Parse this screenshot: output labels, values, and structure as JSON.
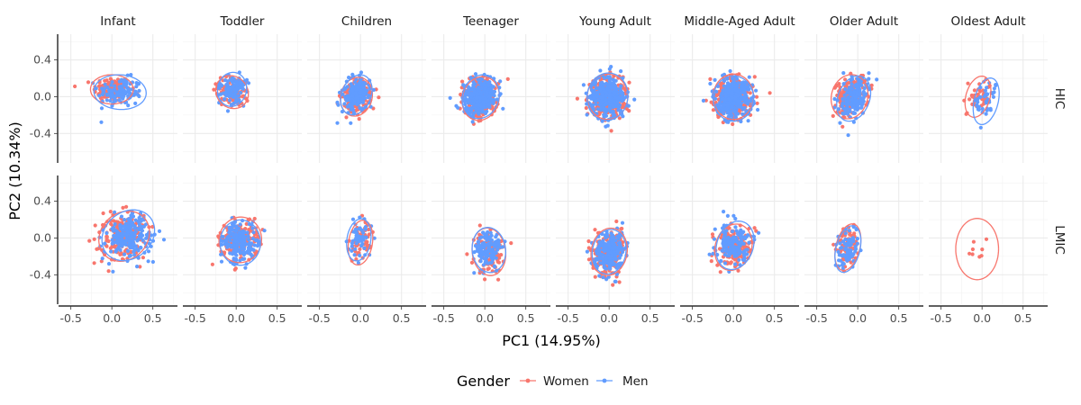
{
  "chart_data": {
    "type": "scatter",
    "title": "",
    "xlabel": "PC1 (14.95%)",
    "ylabel": "PC2 (10.34%)",
    "xlim": [
      -0.65,
      0.8
    ],
    "ylim": [
      -0.72,
      0.68
    ],
    "xticks": [
      -0.5,
      0.0,
      0.5
    ],
    "yticks": [
      -0.4,
      0.0,
      0.4
    ],
    "xtick_labels": [
      "-0.5",
      "0.0",
      "0.5"
    ],
    "ytick_labels": [
      "-0.4",
      "0.0",
      "0.4"
    ],
    "grid": true,
    "facet_columns": [
      "Infant",
      "Toddler",
      "Children",
      "Teenager",
      "Young Adult",
      "Middle-Aged Adult",
      "Older Adult",
      "Oldest Adult"
    ],
    "facet_rows": [
      "HIC",
      "LMIC"
    ],
    "legend": {
      "title": "Gender",
      "position": "bottom",
      "entries": [
        {
          "label": "Women",
          "color": "#F8766D"
        },
        {
          "label": "Men",
          "color": "#619CFF"
        }
      ]
    },
    "series_colors": {
      "Women": "#F8766D",
      "Men": "#619CFF"
    },
    "panels": [
      {
        "row": "HIC",
        "col": "Infant",
        "n": 120,
        "women": {
          "cx": 0.0,
          "cy": 0.08,
          "sx": 0.18,
          "sy": 0.11,
          "r": 0.0
        },
        "men": {
          "cx": 0.1,
          "cy": 0.05,
          "sx": 0.22,
          "sy": 0.13,
          "r": -0.05
        }
      },
      {
        "row": "HIC",
        "col": "Toddler",
        "n": 100,
        "women": {
          "cx": -0.05,
          "cy": 0.05,
          "sx": 0.14,
          "sy": 0.12,
          "r": -0.4
        },
        "men": {
          "cx": -0.05,
          "cy": 0.08,
          "sx": 0.12,
          "sy": 0.13,
          "r": -0.5
        }
      },
      {
        "row": "HIC",
        "col": "Children",
        "n": 170,
        "women": {
          "cx": -0.05,
          "cy": 0.0,
          "sx": 0.13,
          "sy": 0.15,
          "r": -0.5
        },
        "men": {
          "cx": -0.05,
          "cy": 0.02,
          "sx": 0.12,
          "sy": 0.16,
          "r": -0.55
        }
      },
      {
        "row": "HIC",
        "col": "Teenager",
        "n": 280,
        "women": {
          "cx": -0.05,
          "cy": -0.02,
          "sx": 0.15,
          "sy": 0.17,
          "r": -0.6
        },
        "men": {
          "cx": -0.05,
          "cy": 0.0,
          "sx": 0.15,
          "sy": 0.17,
          "r": -0.6
        }
      },
      {
        "row": "HIC",
        "col": "Young Adult",
        "n": 320,
        "women": {
          "cx": -0.02,
          "cy": 0.0,
          "sx": 0.17,
          "sy": 0.17,
          "r": -0.5
        },
        "men": {
          "cx": -0.02,
          "cy": 0.0,
          "sx": 0.17,
          "sy": 0.18,
          "r": -0.5
        }
      },
      {
        "row": "HIC",
        "col": "Middle-Aged Adult",
        "n": 340,
        "women": {
          "cx": 0.0,
          "cy": 0.0,
          "sx": 0.17,
          "sy": 0.17,
          "r": -0.45
        },
        "men": {
          "cx": 0.0,
          "cy": -0.02,
          "sx": 0.17,
          "sy": 0.17,
          "r": -0.45
        }
      },
      {
        "row": "HIC",
        "col": "Older Adult",
        "n": 170,
        "women": {
          "cx": -0.1,
          "cy": 0.0,
          "sx": 0.15,
          "sy": 0.17,
          "r": -0.5
        },
        "men": {
          "cx": -0.05,
          "cy": -0.02,
          "sx": 0.13,
          "sy": 0.18,
          "r": -0.5
        }
      },
      {
        "row": "HIC",
        "col": "Oldest Adult",
        "n": 40,
        "women": {
          "cx": -0.05,
          "cy": 0.0,
          "sx": 0.1,
          "sy": 0.16,
          "r": -0.35
        },
        "men": {
          "cx": 0.05,
          "cy": -0.05,
          "sx": 0.1,
          "sy": 0.18,
          "r": -0.3
        }
      },
      {
        "row": "LMIC",
        "col": "Infant",
        "n": 200,
        "women": {
          "cx": 0.15,
          "cy": 0.02,
          "sx": 0.22,
          "sy": 0.18,
          "r": 0.45
        },
        "men": {
          "cx": 0.2,
          "cy": 0.03,
          "sx": 0.23,
          "sy": 0.18,
          "r": 0.45
        }
      },
      {
        "row": "LMIC",
        "col": "Toddler",
        "n": 180,
        "women": {
          "cx": 0.05,
          "cy": -0.02,
          "sx": 0.18,
          "sy": 0.17,
          "r": 0.3
        },
        "men": {
          "cx": 0.05,
          "cy": -0.05,
          "sx": 0.17,
          "sy": 0.17,
          "r": 0.3
        }
      },
      {
        "row": "LMIC",
        "col": "Children",
        "n": 50,
        "women": {
          "cx": 0.0,
          "cy": -0.05,
          "sx": 0.1,
          "sy": 0.17,
          "r": -0.2
        },
        "men": {
          "cx": -0.02,
          "cy": -0.02,
          "sx": 0.1,
          "sy": 0.16,
          "r": -0.2
        }
      },
      {
        "row": "LMIC",
        "col": "Teenager",
        "n": 120,
        "women": {
          "cx": 0.05,
          "cy": -0.15,
          "sx": 0.14,
          "sy": 0.18,
          "r": 0.2
        },
        "men": {
          "cx": 0.05,
          "cy": -0.13,
          "sx": 0.14,
          "sy": 0.17,
          "r": 0.2
        }
      },
      {
        "row": "LMIC",
        "col": "Young Adult",
        "n": 220,
        "women": {
          "cx": 0.0,
          "cy": -0.15,
          "sx": 0.15,
          "sy": 0.18,
          "r": -0.3
        },
        "men": {
          "cx": 0.0,
          "cy": -0.15,
          "sx": 0.14,
          "sy": 0.17,
          "r": -0.3
        }
      },
      {
        "row": "LMIC",
        "col": "Middle-Aged Adult",
        "n": 160,
        "women": {
          "cx": 0.0,
          "cy": -0.1,
          "sx": 0.15,
          "sy": 0.18,
          "r": -0.5
        },
        "men": {
          "cx": 0.02,
          "cy": -0.08,
          "sx": 0.15,
          "sy": 0.19,
          "r": -0.5
        }
      },
      {
        "row": "LMIC",
        "col": "Older Adult",
        "n": 80,
        "women": {
          "cx": -0.12,
          "cy": -0.1,
          "sx": 0.1,
          "sy": 0.18,
          "r": -0.3
        },
        "men": {
          "cx": -0.12,
          "cy": -0.12,
          "sx": 0.1,
          "sy": 0.18,
          "r": -0.3
        }
      },
      {
        "row": "LMIC",
        "col": "Oldest Adult",
        "n": 8,
        "women": {
          "cx": -0.06,
          "cy": -0.12,
          "sx": 0.18,
          "sy": 0.23,
          "r": 0.0
        },
        "men": null
      }
    ]
  }
}
